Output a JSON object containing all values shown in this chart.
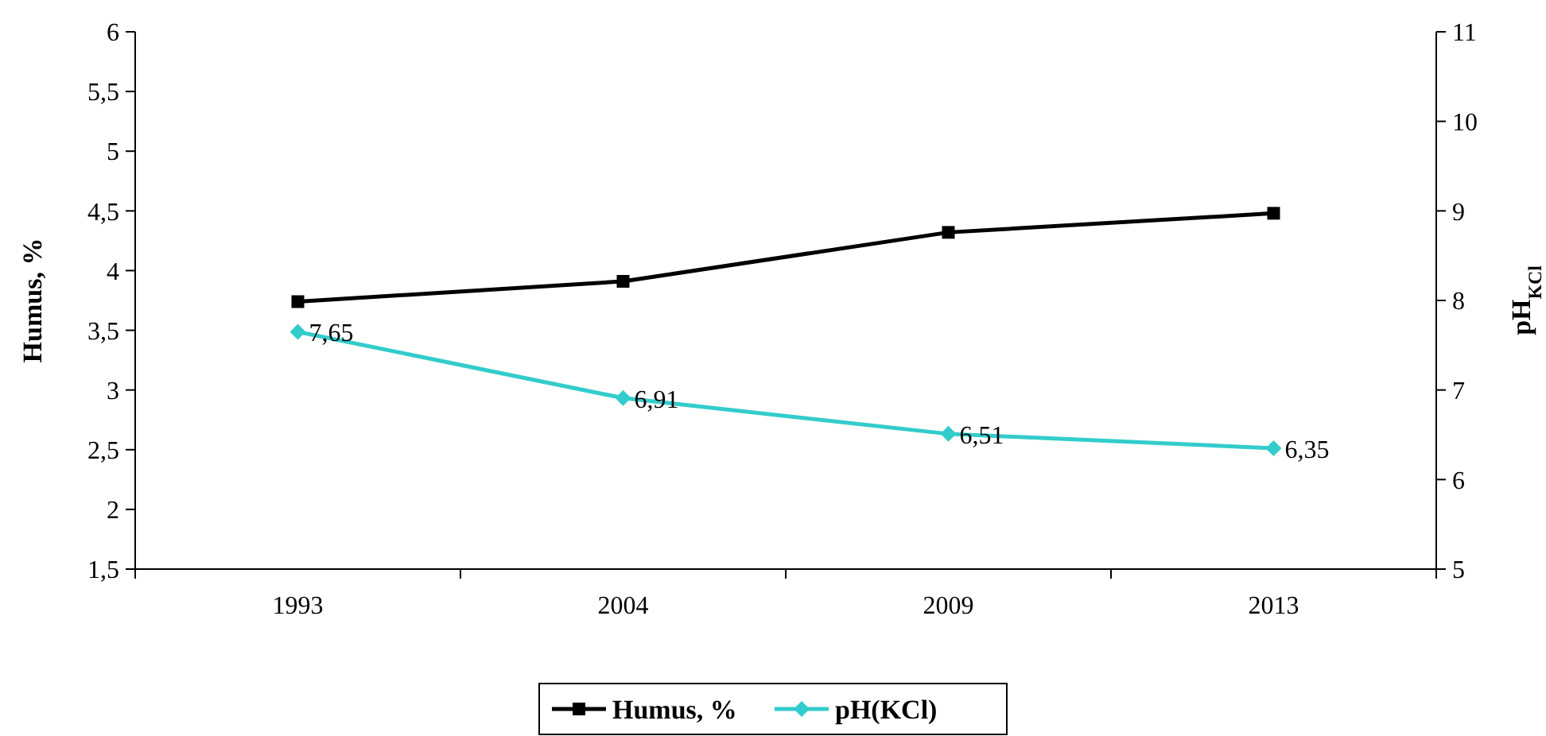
{
  "chart_data": {
    "type": "line",
    "categories": [
      "1993",
      "2004",
      "2009",
      "2013"
    ],
    "ylabel": "Humus, %",
    "y2label": "pH$_{KCl}$",
    "ylim": [
      1.5,
      6
    ],
    "yticks": [
      {
        "value": 1.5,
        "label": "1,5"
      },
      2,
      {
        "value": 2.5,
        "label": "2,5"
      },
      3,
      {
        "value": 3.5,
        "label": "3,5"
      },
      4,
      {
        "value": 4.5,
        "label": "4,5"
      },
      5,
      {
        "value": 5.5,
        "label": "5,5"
      },
      6
    ],
    "y2lim": [
      5,
      11
    ],
    "y2ticks": [
      5,
      6,
      7,
      8,
      9,
      10,
      11
    ],
    "series": [
      {
        "name": "Humus, %",
        "color": "#000000",
        "values": [
          3.74,
          3.91,
          4.32,
          4.48
        ],
        "marker": "square"
      },
      {
        "name": "pH(KCl)",
        "color": "#33cccc",
        "values": [
          7.65,
          6.91,
          6.51,
          6.35
        ],
        "axis": "y2",
        "marker": "diamond",
        "value_labels": [
          "7,65",
          "6,91",
          "6,51",
          "6,35"
        ]
      }
    ],
    "legend": "bottom",
    "grid": false
  }
}
